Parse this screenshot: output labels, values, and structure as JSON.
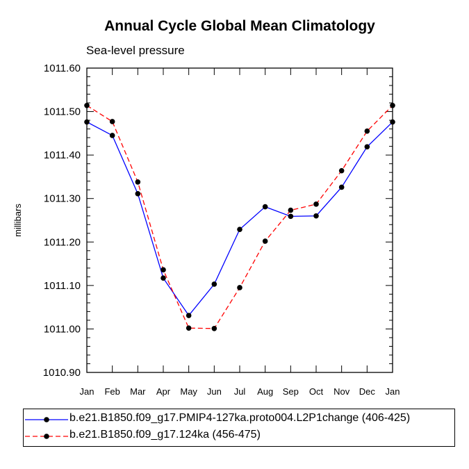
{
  "chart_data": {
    "type": "line",
    "title": "Annual Cycle Global Mean Climatology",
    "subtitle": "Sea-level pressure",
    "xlabel": "",
    "ylabel": "millibars",
    "categories": [
      "Jan",
      "Feb",
      "Mar",
      "Apr",
      "May",
      "Jun",
      "Jul",
      "Aug",
      "Sep",
      "Oct",
      "Nov",
      "Dec",
      "Jan"
    ],
    "ylim": [
      1010.9,
      1011.6
    ],
    "yticks": [
      "1010.90",
      "1011.00",
      "1011.10",
      "1011.20",
      "1011.30",
      "1011.40",
      "1011.50",
      "1011.60"
    ],
    "series": [
      {
        "name": "b.e21.B1850.f09_g17.PMIP4-127ka.proto004.L2P1change (406-425)",
        "color": "#0000ff",
        "dash": "solid",
        "values": [
          1011.476,
          1011.445,
          1011.311,
          1011.117,
          1011.031,
          1011.103,
          1011.229,
          1011.281,
          1011.259,
          1011.26,
          1011.326,
          1011.419,
          1011.476
        ]
      },
      {
        "name": "b.e21.B1850.f09_g17.124ka (456-475)",
        "color": "#ff0000",
        "dash": "dashed",
        "values": [
          1011.514,
          1011.477,
          1011.338,
          1011.136,
          1011.002,
          1011.001,
          1011.095,
          1011.202,
          1011.273,
          1011.287,
          1011.364,
          1011.455,
          1011.514
        ]
      }
    ]
  }
}
